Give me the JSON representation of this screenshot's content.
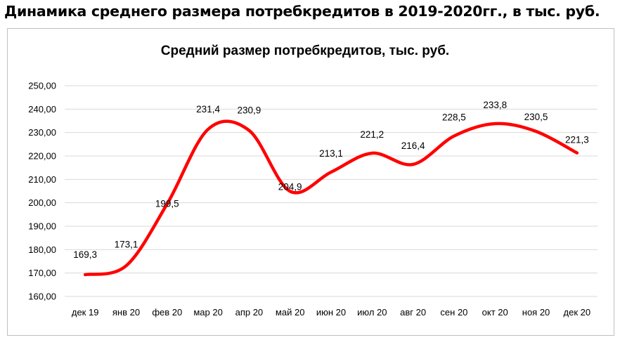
{
  "page_title": "Динамика среднего размера потребкредитов в 2019-2020гг., в тыс. руб.",
  "chart_data": {
    "type": "line",
    "title": "Средний размер потребкредитов,  тыс. руб.",
    "categories": [
      "дек 19",
      "янв 20",
      "фев 20",
      "мар 20",
      "апр 20",
      "май 20",
      "июн 20",
      "июл 20",
      "авг 20",
      "сен 20",
      "окт 20",
      "ноя 20",
      "дек 20"
    ],
    "values": [
      169.3,
      173.1,
      199.5,
      231.4,
      230.9,
      204.9,
      213.1,
      221.2,
      216.4,
      228.5,
      233.8,
      230.5,
      221.3
    ],
    "data_labels": [
      "169,3",
      "173,1",
      "199,5",
      "231,4",
      "230,9",
      "204,9",
      "213,1",
      "221,2",
      "216,4",
      "228,5",
      "233,8",
      "230,5",
      "221,3"
    ],
    "yticks": [
      "160,00",
      "170,00",
      "180,00",
      "190,00",
      "200,00",
      "210,00",
      "220,00",
      "230,00",
      "240,00",
      "250,00"
    ],
    "ylim": [
      160,
      250
    ],
    "ystep": 10,
    "xlabel": "",
    "ylabel": "",
    "grid": true,
    "line_color": "#ff0000",
    "grid_color": "#d9d9d9"
  }
}
